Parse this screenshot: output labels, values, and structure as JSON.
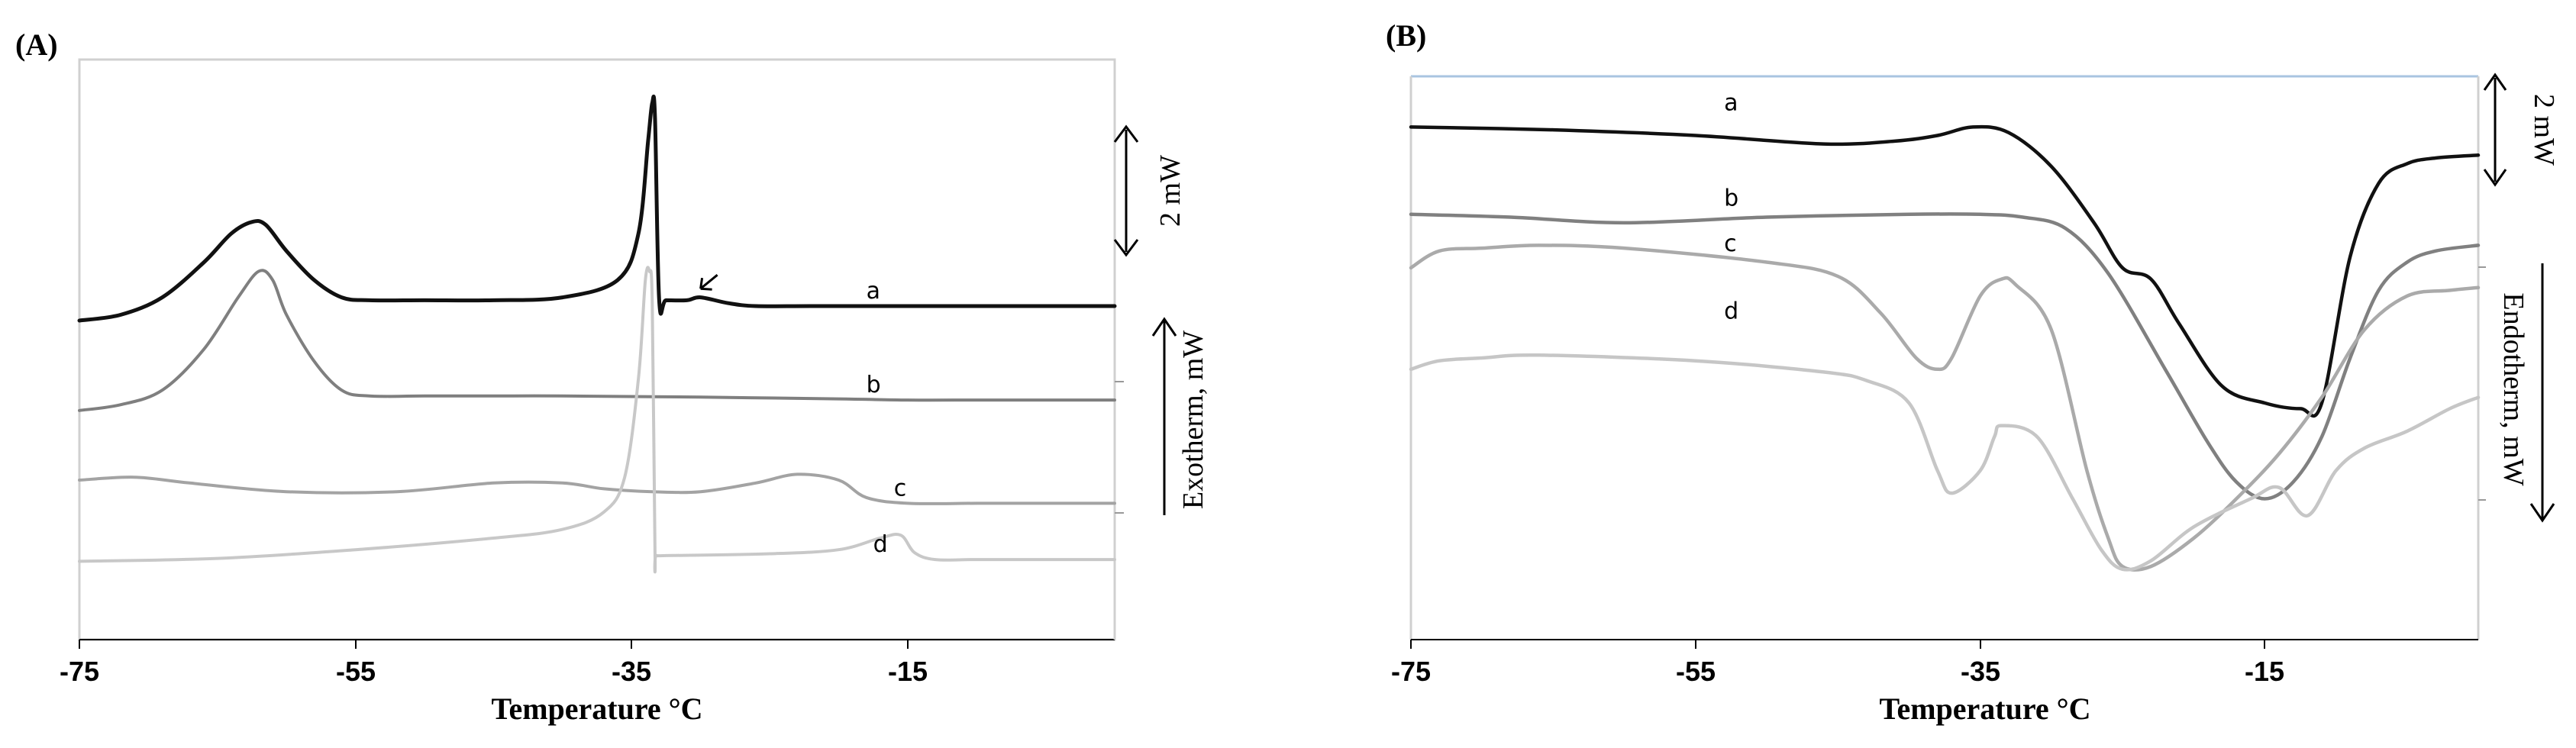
{
  "chart_data": [
    {
      "type": "line",
      "panel": "(A)",
      "xlabel": "Temperature °C",
      "ylabel": "Exotherm, mW",
      "xlim": [
        -75,
        0
      ],
      "x_ticks": [
        -75,
        -55,
        -35,
        -15
      ],
      "x_tick_labels": [
        "-75",
        "-55",
        "-35",
        "-15"
      ],
      "y_units": "relative heat flow",
      "ylim": [
        0,
        100
      ],
      "scale_bar": "2 mW",
      "grid": false,
      "annotations": [
        {
          "text": "arrow",
          "x": -30.0,
          "y": 60.5
        }
      ],
      "series": [
        {
          "label": "a",
          "color": "#111111",
          "x": [
            -75,
            -72,
            -69,
            -66,
            -64,
            -62.5,
            -61.5,
            -60,
            -58,
            -56,
            -54,
            -50,
            -45,
            -40,
            -36,
            -34.5,
            -33.8,
            -33.5,
            -33.3,
            -33.0,
            -32.5,
            -31,
            -30,
            -28,
            -26,
            -22,
            -15,
            -5,
            0
          ],
          "y": [
            55,
            56,
            59,
            65,
            70,
            72,
            71.5,
            67,
            62,
            59,
            58.5,
            58.5,
            58.5,
            59,
            62,
            70,
            86,
            92.5,
            90,
            58.5,
            58.5,
            58.5,
            59,
            58,
            57.5,
            57.5,
            57.5,
            57.5,
            57.5
          ]
        },
        {
          "label": "b",
          "color": "#7f7f7f",
          "x": [
            -75,
            -72,
            -69,
            -66,
            -63.5,
            -62,
            -61,
            -60,
            -58,
            -56,
            -54,
            -50,
            -45,
            -40,
            -30,
            -20,
            -15,
            -10,
            -5,
            0
          ],
          "y": [
            39.5,
            40.5,
            43,
            50,
            59,
            63.5,
            62,
            56,
            48,
            43,
            42,
            42,
            42,
            42,
            41.8,
            41.5,
            41.3,
            41.3,
            41.3,
            41.3
          ]
        },
        {
          "label": "c",
          "color": "#a3a3a3",
          "x": [
            -75,
            -71,
            -67,
            -60,
            -52,
            -45,
            -40,
            -37,
            -33.5,
            -30,
            -26,
            -23,
            -20,
            -18,
            -15,
            -10,
            -5,
            0
          ],
          "y": [
            27.5,
            28,
            27,
            25.5,
            25.5,
            27,
            27,
            26,
            25.5,
            25.5,
            27,
            28.5,
            27.5,
            24.5,
            23.5,
            23.5,
            23.5,
            23.5
          ]
        },
        {
          "label": "d",
          "color": "#c8c8c8",
          "x": [
            -75,
            -65,
            -55,
            -45,
            -40,
            -37,
            -35.5,
            -34.5,
            -34,
            -33.7,
            -33.5,
            -33.3,
            -33.2,
            -32,
            -25,
            -20,
            -17,
            -15.5,
            -14.5,
            -13,
            -10,
            -5,
            0
          ],
          "y": [
            13.5,
            14,
            15.5,
            17.5,
            19,
            22,
            28,
            45,
            62,
            63.5,
            58,
            15,
            14.5,
            14.5,
            14.8,
            15.5,
            17.5,
            18,
            15,
            13.8,
            13.8,
            13.8,
            13.8
          ]
        }
      ]
    },
    {
      "type": "line",
      "panel": "(B)",
      "xlabel": "Temperature °C",
      "ylabel": "Endotherm, mW",
      "xlim": [
        -75,
        0
      ],
      "x_ticks": [
        -75,
        -55,
        -35,
        -15
      ],
      "x_tick_labels": [
        "-75",
        "-55",
        "-35",
        "-15"
      ],
      "y_units": "relative heat flow",
      "ylim": [
        0,
        100
      ],
      "scale_bar": "2 mW",
      "grid": false,
      "series": [
        {
          "label": "a",
          "color": "#111111",
          "x": [
            -75,
            -65,
            -55,
            -46,
            -41,
            -38,
            -35.5,
            -33,
            -30,
            -27,
            -25,
            -23,
            -21,
            -18,
            -15,
            -12.5,
            -11,
            -9,
            -7,
            -5,
            -3,
            0
          ],
          "y": [
            91,
            90.5,
            89.5,
            88,
            88.5,
            89.5,
            91,
            90,
            84,
            74,
            66,
            64,
            56,
            45,
            42,
            41,
            42,
            68,
            81,
            84.5,
            85.5,
            86
          ]
        },
        {
          "label": "b",
          "color": "#808080",
          "x": [
            -75,
            -68,
            -60,
            -50,
            -40,
            -35,
            -32,
            -29,
            -26,
            -22,
            -19,
            -17,
            -15,
            -13,
            -11,
            -9,
            -7,
            -5,
            -3,
            0
          ],
          "y": [
            75.5,
            75,
            74,
            75,
            75.5,
            75.5,
            75,
            73,
            65,
            48,
            35,
            28,
            25,
            28,
            36,
            50,
            62,
            67,
            69,
            70
          ]
        },
        {
          "label": "c",
          "color": "#aaaaaa",
          "x": [
            -75,
            -73,
            -70,
            -66,
            -60,
            -50,
            -45,
            -42,
            -39.5,
            -38,
            -37,
            -35,
            -33.5,
            -32.5,
            -30,
            -27.5,
            -26,
            -25,
            -23,
            -20,
            -17,
            -14,
            -11,
            -8,
            -5,
            -2,
            0
          ],
          "y": [
            66,
            69,
            69.5,
            70,
            69.5,
            67,
            64.5,
            58,
            50,
            48,
            50,
            61,
            64,
            63,
            55,
            30,
            18,
            13,
            13,
            18,
            25,
            33,
            43,
            55,
            61,
            62,
            62.5
          ]
        },
        {
          "label": "d",
          "color": "#c6c6c6",
          "x": [
            -75,
            -73,
            -70,
            -66,
            -55,
            -46,
            -43,
            -40,
            -38,
            -37,
            -35,
            -34,
            -33.5,
            -31,
            -28.5,
            -26.5,
            -25,
            -23,
            -20,
            -16,
            -14,
            -12,
            -10,
            -8,
            -5,
            -2,
            0
          ],
          "y": [
            48,
            49.5,
            50,
            50.5,
            49.5,
            47.5,
            46,
            42,
            30,
            26,
            30,
            36,
            38,
            36,
            25,
            16,
            12.5,
            14,
            20,
            25,
            27,
            22,
            30,
            34,
            37,
            41,
            43
          ]
        }
      ]
    }
  ]
}
